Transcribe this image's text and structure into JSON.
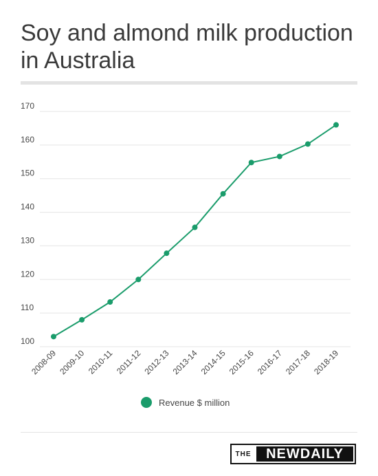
{
  "title": "Soy and almond milk production in Australia",
  "legend": {
    "label": "Revenue $ million"
  },
  "brand": {
    "the": "THE",
    "new": "NEW",
    "daily": "DAILY"
  },
  "colors": {
    "series": "#1a9c6b",
    "grid": "#e5e5e5",
    "rule": "#e3e3e3"
  },
  "chart_data": {
    "type": "line",
    "title": "Soy and almond milk production in Australia",
    "xlabel": "",
    "ylabel": "",
    "categories": [
      "2008-09",
      "2009-10",
      "2010-11",
      "2011-12",
      "2012-13",
      "2013-14",
      "2014-15",
      "2015-16",
      "2016-17",
      "2017-18",
      "2018-19"
    ],
    "series": [
      {
        "name": "Revenue $ million",
        "values": [
          103,
          108,
          113.3,
          120,
          127.8,
          135.5,
          145.5,
          154.8,
          156.6,
          160.3,
          166
        ]
      }
    ],
    "ylim": [
      100,
      170
    ],
    "yticks": [
      100,
      110,
      120,
      130,
      140,
      150,
      160,
      170
    ],
    "grid": true,
    "legend": "bottom"
  }
}
